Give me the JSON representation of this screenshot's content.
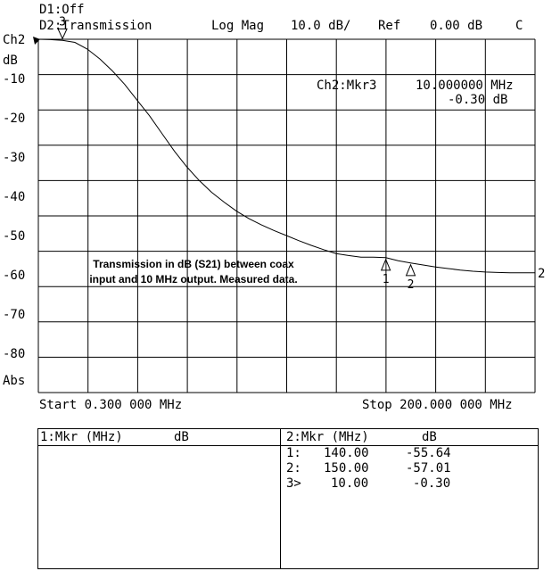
{
  "header": {
    "ch1_label": "D1:Off",
    "ch2_label": "D2:Transmission",
    "format": "Log Mag",
    "scale": "10.0 dB/",
    "ref_label": "Ref",
    "ref_value": "0.00 dB",
    "flag": "C"
  },
  "axis": {
    "unit": "dB",
    "ref_channel": "Ch2",
    "bottom_label": "Abs",
    "start_label": "Start 0.300 000 MHz",
    "stop_label": "Stop 200.000 000 MHz"
  },
  "marker_readout": {
    "line1_label": "Ch2:Mkr3",
    "line1_value": "10.000000 MHz",
    "line2_value": "-0.30 dB"
  },
  "annotation": {
    "line1": "Transmission in dB (S21) between coax",
    "line2": "input and 10 MHz output. Measured data."
  },
  "chart_data": {
    "type": "line",
    "title": "",
    "xlabel": "",
    "ylabel": "dB",
    "xlim": [
      0.3,
      200
    ],
    "ylim": [
      -90,
      0
    ],
    "y_ticks": [
      0,
      -10,
      -20,
      -30,
      -40,
      -50,
      -60,
      -70,
      -80
    ],
    "y_tick_labels": [
      "Ch2",
      "-10",
      "-20",
      "-30",
      "-40",
      "-50",
      "-60",
      "-70",
      "-80"
    ],
    "grid": true,
    "series": [
      {
        "x": [
          0.3,
          5,
          10,
          15,
          20,
          25,
          30,
          35,
          40,
          45,
          50,
          55,
          60,
          65,
          70,
          75,
          80,
          85,
          90,
          95,
          100,
          105,
          110,
          115,
          120,
          125,
          130,
          135,
          140,
          145,
          150,
          155,
          160,
          165,
          170,
          175,
          180,
          185,
          190,
          195,
          200
        ],
        "y": [
          0,
          -0.1,
          -0.3,
          -0.8,
          -2.5,
          -5,
          -8,
          -11.5,
          -15.5,
          -19.5,
          -24,
          -28.5,
          -32.5,
          -36,
          -39,
          -41.5,
          -43.8,
          -45.7,
          -47.3,
          -48.7,
          -50,
          -51.3,
          -52.5,
          -53.6,
          -54.6,
          -55.1,
          -55.5,
          -55.5,
          -55.64,
          -56.4,
          -57.01,
          -57.5,
          -58,
          -58.4,
          -58.8,
          -59.1,
          -59.3,
          -59.4,
          -59.5,
          -59.5,
          -59.5
        ]
      }
    ],
    "markers": [
      {
        "label": "1",
        "x": 140,
        "y": -55.64
      },
      {
        "label": "2",
        "x": 150,
        "y": -57.01
      },
      {
        "label": "3",
        "x": 10,
        "y": -0.3
      }
    ],
    "ref_marker_label": "2"
  },
  "tables": {
    "left": {
      "header_mkr": "1:Mkr (MHz)",
      "header_db": "dB"
    },
    "right": {
      "header_mkr": "2:Mkr (MHz)",
      "header_db": "dB",
      "rows": [
        {
          "idx": "1:",
          "freq": "140.00",
          "db": "-55.64"
        },
        {
          "idx": "2:",
          "freq": "150.00",
          "db": "-57.01"
        },
        {
          "idx": "3>",
          "freq": "10.00",
          "db": "-0.30"
        }
      ]
    }
  }
}
